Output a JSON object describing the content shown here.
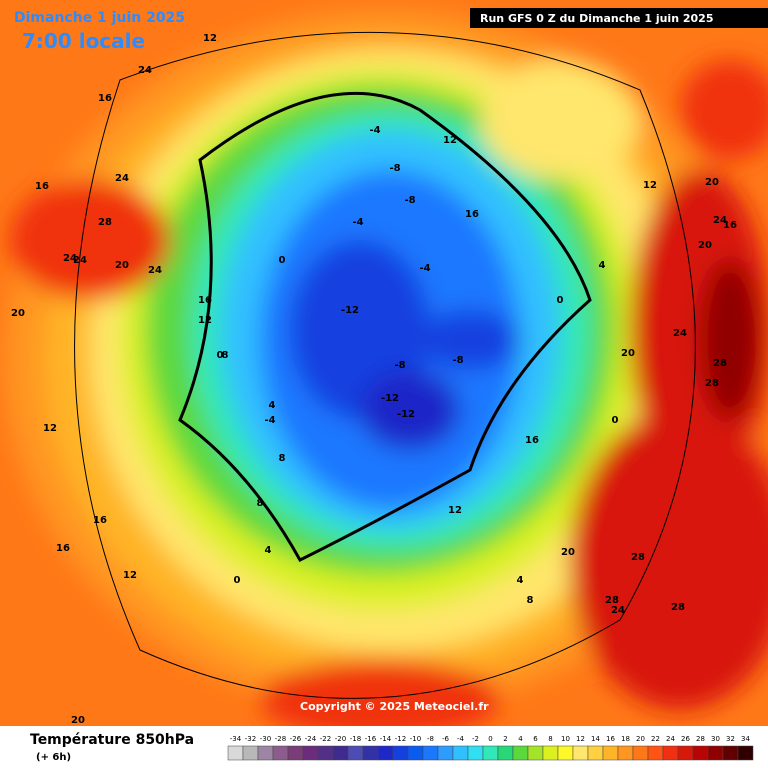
{
  "header": {
    "date": "Dimanche 1 juin 2025",
    "time": "7:00 locale",
    "run": "Run GFS 0 Z du Dimanche 1 juin 2025"
  },
  "copyright": "Copyright © 2025 Meteociel.fr",
  "legend": {
    "title": "Température 850hPa",
    "step": "(+ 6h)",
    "scale": [
      {
        "value": -34,
        "color": "#d9d9d9"
      },
      {
        "value": -32,
        "color": "#b8b8b8"
      },
      {
        "value": -30,
        "color": "#9c86a4"
      },
      {
        "value": -28,
        "color": "#8c5c8c"
      },
      {
        "value": -26,
        "color": "#7a3d7a"
      },
      {
        "value": -24,
        "color": "#6b2c7c"
      },
      {
        "value": -22,
        "color": "#533088"
      },
      {
        "value": -20,
        "color": "#3f2a90"
      },
      {
        "value": -18,
        "color": "#4c4cb4"
      },
      {
        "value": -16,
        "color": "#3232a6"
      },
      {
        "value": -14,
        "color": "#1e28c8"
      },
      {
        "value": -12,
        "color": "#1440e0"
      },
      {
        "value": -10,
        "color": "#0a5cf0"
      },
      {
        "value": -8,
        "color": "#1a78ff"
      },
      {
        "value": -6,
        "color": "#2c9cff"
      },
      {
        "value": -4,
        "color": "#30c0ff"
      },
      {
        "value": -2,
        "color": "#30e0f0"
      },
      {
        "value": 0,
        "color": "#30e8b8"
      },
      {
        "value": 2,
        "color": "#28d878"
      },
      {
        "value": 4,
        "color": "#5cd83c"
      },
      {
        "value": 6,
        "color": "#a4e428"
      },
      {
        "value": 8,
        "color": "#dcf020"
      },
      {
        "value": 10,
        "color": "#fff828"
      },
      {
        "value": 12,
        "color": "#ffe66c"
      },
      {
        "value": 14,
        "color": "#ffd040"
      },
      {
        "value": 16,
        "color": "#ffb428"
      },
      {
        "value": 18,
        "color": "#ff9620"
      },
      {
        "value": 20,
        "color": "#ff7818"
      },
      {
        "value": 22,
        "color": "#ff5414"
      },
      {
        "value": 24,
        "color": "#f03010"
      },
      {
        "value": 26,
        "color": "#d81808"
      },
      {
        "value": 28,
        "color": "#b80404"
      },
      {
        "value": 30,
        "color": "#900000"
      },
      {
        "value": 32,
        "color": "#600000"
      },
      {
        "value": 34,
        "color": "#300000"
      }
    ]
  },
  "contour_labels": [
    12,
    16,
    16,
    24,
    28,
    24,
    20,
    24,
    16,
    12,
    8,
    4,
    0,
    0,
    -4,
    -8,
    -8,
    -12,
    -8,
    -12,
    -12,
    -8,
    -4,
    -4,
    0,
    4,
    8,
    12,
    16,
    20,
    24,
    28,
    28,
    24,
    20,
    28,
    28,
    24,
    20,
    16,
    12,
    8,
    4,
    0,
    -4,
    12,
    16,
    20,
    24,
    20,
    16,
    12,
    8,
    4,
    0,
    20,
    24,
    28,
    12,
    16
  ]
}
